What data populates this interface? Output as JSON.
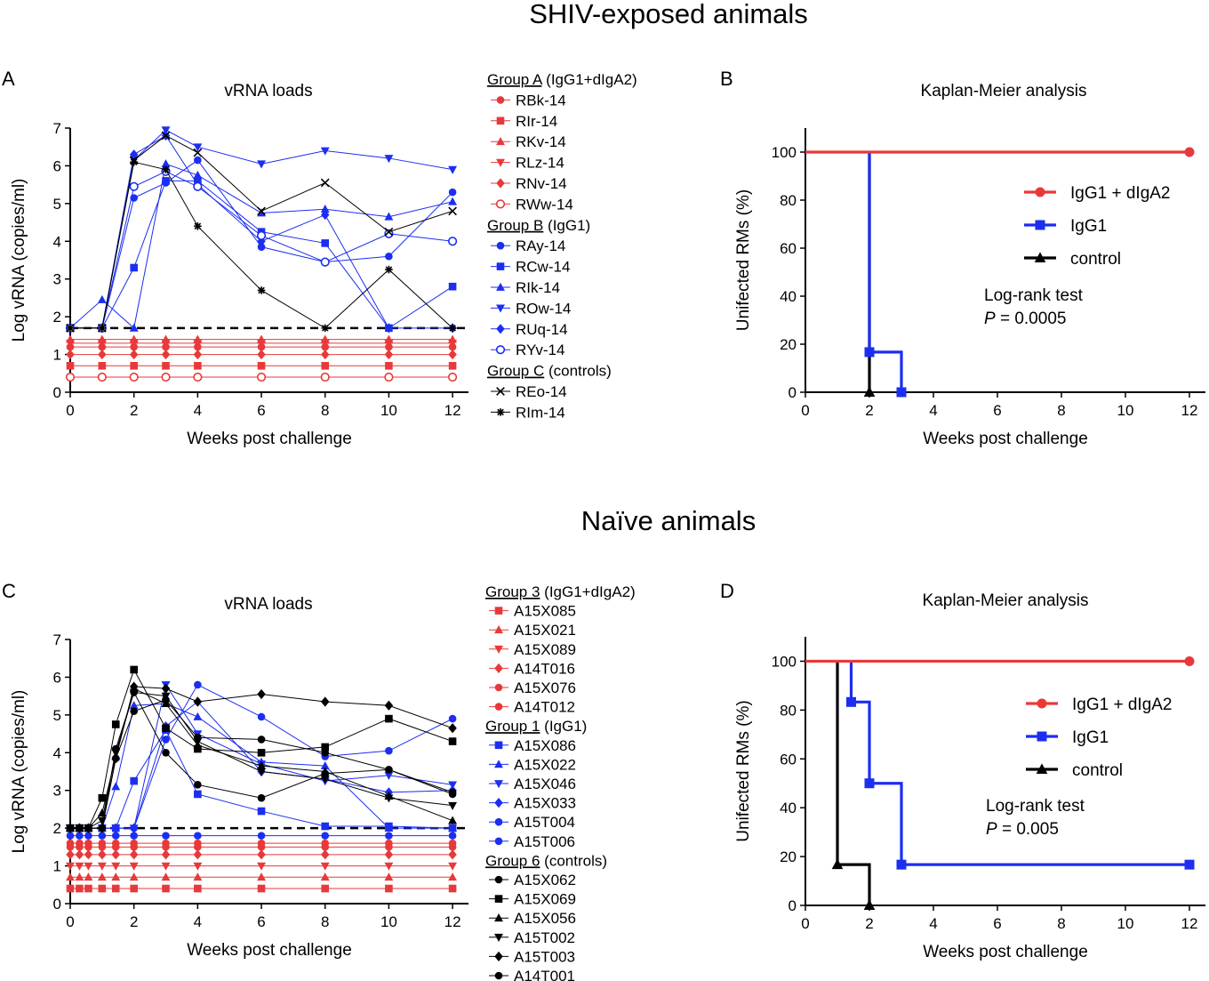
{
  "page": {
    "top_heading": "SHIV-exposed animals",
    "mid_heading": "Naïve animals"
  },
  "chart_data": [
    {
      "id": "A",
      "panel_label": "A",
      "type": "line",
      "title": "vRNA loads",
      "xlabel": "Weeks post challenge",
      "ylabel": "Log vRNA (copies/ml)",
      "xlim": [
        0,
        12.5
      ],
      "ylim": [
        0,
        7
      ],
      "xticks": [
        "0",
        "2",
        "4",
        "6",
        "8",
        "10",
        "12"
      ],
      "yticks": [
        "0",
        "1",
        "2",
        "3",
        "4",
        "5",
        "6",
        "7"
      ],
      "detection_limit": 1.7,
      "x": [
        0,
        1,
        2,
        3,
        4,
        6,
        8,
        10,
        12
      ],
      "groups": [
        {
          "label": "Group A",
          "suffix": " (IgG1+dIgA2)",
          "color": "#e8393a",
          "series": [
            {
              "name": "RBk-14",
              "marker": "circle",
              "values": [
                1.2,
                1.2,
                1.2,
                1.2,
                1.2,
                1.2,
                1.2,
                1.2,
                1.2
              ]
            },
            {
              "name": "RIr-14",
              "marker": "square",
              "values": [
                0.7,
                0.7,
                0.7,
                0.7,
                0.7,
                0.7,
                0.7,
                0.7,
                0.7
              ]
            },
            {
              "name": "RKv-14",
              "marker": "triangle",
              "values": [
                1.4,
                1.4,
                1.4,
                1.4,
                1.4,
                1.4,
                1.4,
                1.4,
                1.4
              ]
            },
            {
              "name": "RLz-14",
              "marker": "triangle-down",
              "values": [
                1.3,
                1.3,
                1.3,
                1.3,
                1.3,
                1.3,
                1.3,
                1.3,
                1.3
              ]
            },
            {
              "name": "RNv-14",
              "marker": "diamond",
              "values": [
                1.0,
                1.0,
                1.0,
                1.0,
                1.0,
                1.0,
                1.0,
                1.0,
                1.0
              ]
            },
            {
              "name": "RWw-14",
              "marker": "circle-open",
              "values": [
                0.4,
                0.4,
                0.4,
                0.4,
                0.4,
                0.4,
                0.4,
                0.4,
                0.4
              ]
            }
          ]
        },
        {
          "label": "Group B",
          "suffix": " (IgG1)",
          "color": "#1c2ef0",
          "series": [
            {
              "name": "RAy-14",
              "marker": "circle",
              "values": [
                1.7,
                1.7,
                5.15,
                5.55,
                6.15,
                3.85,
                3.45,
                3.6,
                5.3
              ]
            },
            {
              "name": "RCw-14",
              "marker": "square",
              "values": [
                1.7,
                1.7,
                3.3,
                5.6,
                5.6,
                4.25,
                3.95,
                1.7,
                2.8
              ]
            },
            {
              "name": "RIk-14",
              "marker": "triangle",
              "values": [
                1.7,
                2.45,
                1.7,
                6.05,
                5.75,
                4.75,
                4.85,
                4.65,
                5.05
              ]
            },
            {
              "name": "ROw-14",
              "marker": "triangle-down",
              "values": [
                1.7,
                1.7,
                6.15,
                6.95,
                6.5,
                6.05,
                6.4,
                6.2,
                5.9
              ]
            },
            {
              "name": "RUq-14",
              "marker": "diamond",
              "values": [
                1.7,
                1.7,
                6.3,
                6.8,
                5.5,
                4.0,
                4.7,
                1.7,
                1.7
              ]
            },
            {
              "name": "RYv-14",
              "marker": "circle-open",
              "values": [
                1.7,
                1.7,
                5.45,
                5.85,
                5.45,
                4.15,
                3.45,
                4.2,
                4.0
              ]
            }
          ]
        },
        {
          "label": "Group C",
          "suffix": " (controls)",
          "color": "#000000",
          "series": [
            {
              "name": "REo-14",
              "marker": "x",
              "values": [
                1.7,
                1.7,
                6.15,
                6.8,
                6.35,
                4.8,
                5.55,
                4.25,
                4.8
              ]
            },
            {
              "name": "RIm-14",
              "marker": "star",
              "values": [
                1.7,
                1.7,
                6.1,
                5.9,
                4.4,
                2.7,
                1.7,
                3.25,
                1.7
              ]
            }
          ]
        }
      ]
    },
    {
      "id": "B",
      "panel_label": "B",
      "type": "line",
      "subtype": "kaplan-meier",
      "title": "Kaplan-Meier analysis",
      "xlabel": "Weeks post challenge",
      "ylabel": "Unifected RMs (%)",
      "xlim": [
        0,
        12.5
      ],
      "ylim": [
        0,
        110
      ],
      "xticks": [
        "0",
        "2",
        "4",
        "6",
        "8",
        "10",
        "12"
      ],
      "yticks": [
        "0",
        "20",
        "40",
        "60",
        "80",
        "100"
      ],
      "series": [
        {
          "name": "IgG1 + dIgA2",
          "color": "#e8393a",
          "marker": "circle",
          "x": [
            0,
            12
          ],
          "y": [
            100,
            100
          ],
          "marks": [
            [
              12,
              100
            ]
          ]
        },
        {
          "name": "IgG1",
          "color": "#1c2ef0",
          "marker": "square",
          "x": [
            2,
            2,
            3,
            3
          ],
          "y": [
            100,
            16.7,
            16.7,
            0
          ],
          "marks": [
            [
              2,
              16.7
            ],
            [
              3,
              0
            ]
          ]
        },
        {
          "name": "control",
          "color": "#000000",
          "marker": "triangle",
          "x": [
            2,
            2
          ],
          "y": [
            100,
            0
          ],
          "marks": [
            [
              2,
              0
            ]
          ]
        }
      ],
      "annotation": {
        "test": "Log-rank test",
        "p_label": "P",
        "p_value": " = 0.0005"
      }
    },
    {
      "id": "C",
      "panel_label": "C",
      "type": "line",
      "title": "vRNA loads",
      "xlabel": "Weeks post challenge",
      "ylabel": "Log vRNA (copies/ml)",
      "xlim": [
        0,
        12.5
      ],
      "ylim": [
        0,
        7
      ],
      "xticks": [
        "0",
        "2",
        "4",
        "6",
        "8",
        "10",
        "12"
      ],
      "yticks": [
        "0",
        "1",
        "2",
        "3",
        "4",
        "5",
        "6",
        "7"
      ],
      "detection_limit": 2.0,
      "x": [
        0,
        0.29,
        0.57,
        1,
        1.43,
        2,
        3,
        4,
        6,
        8,
        10,
        12
      ],
      "groups": [
        {
          "label": "Group 3",
          "suffix": " (IgG1+dIgA2)",
          "color": "#e8393a",
          "series": [
            {
              "name": "A15X085",
              "marker": "square",
              "values": [
                0.4,
                0.4,
                0.4,
                0.4,
                0.4,
                0.4,
                0.4,
                0.4,
                0.4,
                0.4,
                0.4,
                0.4
              ]
            },
            {
              "name": "A15X021",
              "marker": "triangle",
              "values": [
                0.7,
                0.7,
                0.7,
                0.7,
                0.7,
                0.7,
                0.7,
                0.7,
                0.7,
                0.7,
                0.7,
                0.7
              ]
            },
            {
              "name": "A15X089",
              "marker": "triangle-down",
              "values": [
                1.0,
                1.0,
                1.0,
                1.0,
                1.0,
                1.0,
                1.0,
                1.0,
                1.0,
                1.0,
                1.0,
                1.0
              ]
            },
            {
              "name": "A14T016",
              "marker": "diamond",
              "values": [
                1.3,
                1.3,
                1.3,
                1.3,
                1.3,
                1.3,
                1.3,
                1.3,
                1.3,
                1.3,
                1.3,
                1.3
              ]
            },
            {
              "name": "A15X076",
              "marker": "circle",
              "values": [
                1.5,
                1.5,
                1.5,
                1.5,
                1.5,
                1.5,
                1.5,
                1.5,
                1.5,
                1.5,
                1.5,
                1.5
              ]
            },
            {
              "name": "A14T012",
              "marker": "circle",
              "values": [
                1.6,
                1.6,
                1.6,
                1.6,
                1.6,
                1.6,
                1.6,
                1.6,
                1.6,
                1.6,
                1.6,
                1.6
              ]
            }
          ]
        },
        {
          "label": "Group 1",
          "suffix": " (IgG1)",
          "color": "#1c2ef0",
          "series": [
            {
              "name": "A15X086",
              "marker": "square",
              "values": [
                2.0,
                2.0,
                2.0,
                2.0,
                2.0,
                3.25,
                4.6,
                2.9,
                2.45,
                2.05,
                2.05,
                2.0
              ]
            },
            {
              "name": "A15X022",
              "marker": "triangle",
              "values": [
                2.0,
                2.0,
                2.0,
                2.0,
                3.1,
                5.25,
                5.3,
                4.95,
                3.75,
                3.65,
                2.0,
                2.0
              ]
            },
            {
              "name": "A15X046",
              "marker": "triangle-down",
              "values": [
                2.0,
                2.0,
                2.0,
                2.0,
                2.0,
                2.0,
                5.8,
                4.5,
                3.7,
                3.25,
                3.4,
                3.15
              ]
            },
            {
              "name": "A15X033",
              "marker": "diamond",
              "values": [
                2.0,
                2.0,
                2.0,
                2.0,
                2.0,
                2.0,
                4.7,
                5.35,
                3.5,
                3.3,
                2.95,
                3.0
              ]
            },
            {
              "name": "A15T004",
              "marker": "circle",
              "values": [
                2.0,
                2.0,
                2.0,
                2.0,
                2.0,
                2.0,
                4.35,
                5.8,
                4.95,
                3.9,
                4.05,
                4.9
              ]
            },
            {
              "name": "A15T006",
              "marker": "circle",
              "values": [
                1.8,
                1.8,
                1.8,
                1.8,
                1.8,
                1.8,
                1.8,
                1.8,
                1.8,
                1.8,
                1.8,
                1.8
              ]
            }
          ]
        },
        {
          "label": "Group 6",
          "suffix": " (controls)",
          "color": "#000000",
          "series": [
            {
              "name": "A15X062",
              "marker": "circle",
              "values": [
                2.0,
                2.0,
                2.0,
                2.0,
                4.1,
                5.6,
                4.0,
                3.15,
                2.8,
                3.45,
                3.55,
                2.9
              ]
            },
            {
              "name": "A15X069",
              "marker": "square",
              "values": [
                2.0,
                2.0,
                2.0,
                2.8,
                4.75,
                6.2,
                4.65,
                4.1,
                4.0,
                4.15,
                4.9,
                4.3
              ]
            },
            {
              "name": "A15X056",
              "marker": "triangle",
              "values": [
                2.0,
                2.0,
                2.0,
                2.4,
                3.9,
                5.7,
                5.3,
                4.2,
                3.65,
                3.5,
                2.85,
                2.2
              ]
            },
            {
              "name": "A15T002",
              "marker": "triangle-down",
              "values": [
                2.0,
                2.0,
                2.0,
                2.2,
                4.0,
                5.6,
                5.5,
                4.3,
                3.5,
                3.3,
                2.8,
                2.6
              ]
            },
            {
              "name": "A15T003",
              "marker": "diamond",
              "values": [
                2.0,
                2.0,
                2.0,
                2.0,
                3.85,
                5.75,
                5.7,
                5.35,
                5.55,
                5.35,
                5.25,
                4.65
              ]
            },
            {
              "name": "A14T001",
              "marker": "circle",
              "values": [
                2.0,
                2.0,
                2.0,
                2.0,
                3.85,
                5.1,
                5.4,
                4.4,
                4.35,
                4.0,
                3.55,
                2.95
              ]
            }
          ]
        }
      ]
    },
    {
      "id": "D",
      "panel_label": "D",
      "type": "line",
      "subtype": "kaplan-meier",
      "title": "Kaplan-Meier analysis",
      "xlabel": "Weeks post challenge",
      "ylabel": "Unifected RMs (%)",
      "xlim": [
        0,
        12.5
      ],
      "ylim": [
        0,
        110
      ],
      "xticks": [
        "0",
        "2",
        "4",
        "6",
        "8",
        "10",
        "12"
      ],
      "yticks": [
        "0",
        "20",
        "40",
        "60",
        "80",
        "100"
      ],
      "series": [
        {
          "name": "IgG1 + dIgA2",
          "color": "#e8393a",
          "marker": "circle",
          "x": [
            0,
            12
          ],
          "y": [
            100,
            100
          ],
          "marks": [
            [
              12,
              100
            ]
          ]
        },
        {
          "name": "IgG1",
          "color": "#1c2ef0",
          "marker": "square",
          "x": [
            1.43,
            1.43,
            2,
            2,
            3,
            3,
            12
          ],
          "y": [
            100,
            83.3,
            83.3,
            50,
            50,
            16.7,
            16.7
          ],
          "marks": [
            [
              1.43,
              83.3
            ],
            [
              2,
              50
            ],
            [
              3,
              16.7
            ],
            [
              12,
              16.7
            ]
          ]
        },
        {
          "name": "control",
          "color": "#000000",
          "marker": "triangle",
          "x": [
            1,
            1,
            2,
            2
          ],
          "y": [
            100,
            16.7,
            16.7,
            0
          ],
          "marks": [
            [
              1,
              16.7
            ],
            [
              2,
              0
            ]
          ]
        }
      ],
      "annotation": {
        "test": "Log-rank test",
        "p_label": "P",
        "p_value": " = 0.005"
      }
    }
  ]
}
